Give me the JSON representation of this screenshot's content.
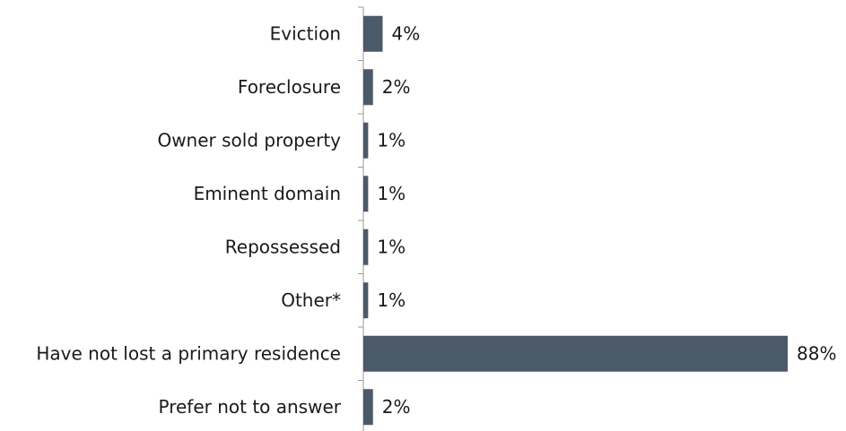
{
  "chart_data": {
    "type": "hbar",
    "categories": [
      "Eviction",
      "Foreclosure",
      "Owner sold property",
      "Eminent domain",
      "Repossessed",
      "Other*",
      "Have not lost a primary residence",
      "Prefer not to answer"
    ],
    "values": [
      4,
      2,
      1,
      1,
      1,
      1,
      88,
      2
    ],
    "value_labels": [
      "4%",
      "2%",
      "1%",
      "1%",
      "1%",
      "1%",
      "88%",
      "2%"
    ],
    "color": "#4b5a69",
    "xlim": [
      0,
      100
    ]
  }
}
